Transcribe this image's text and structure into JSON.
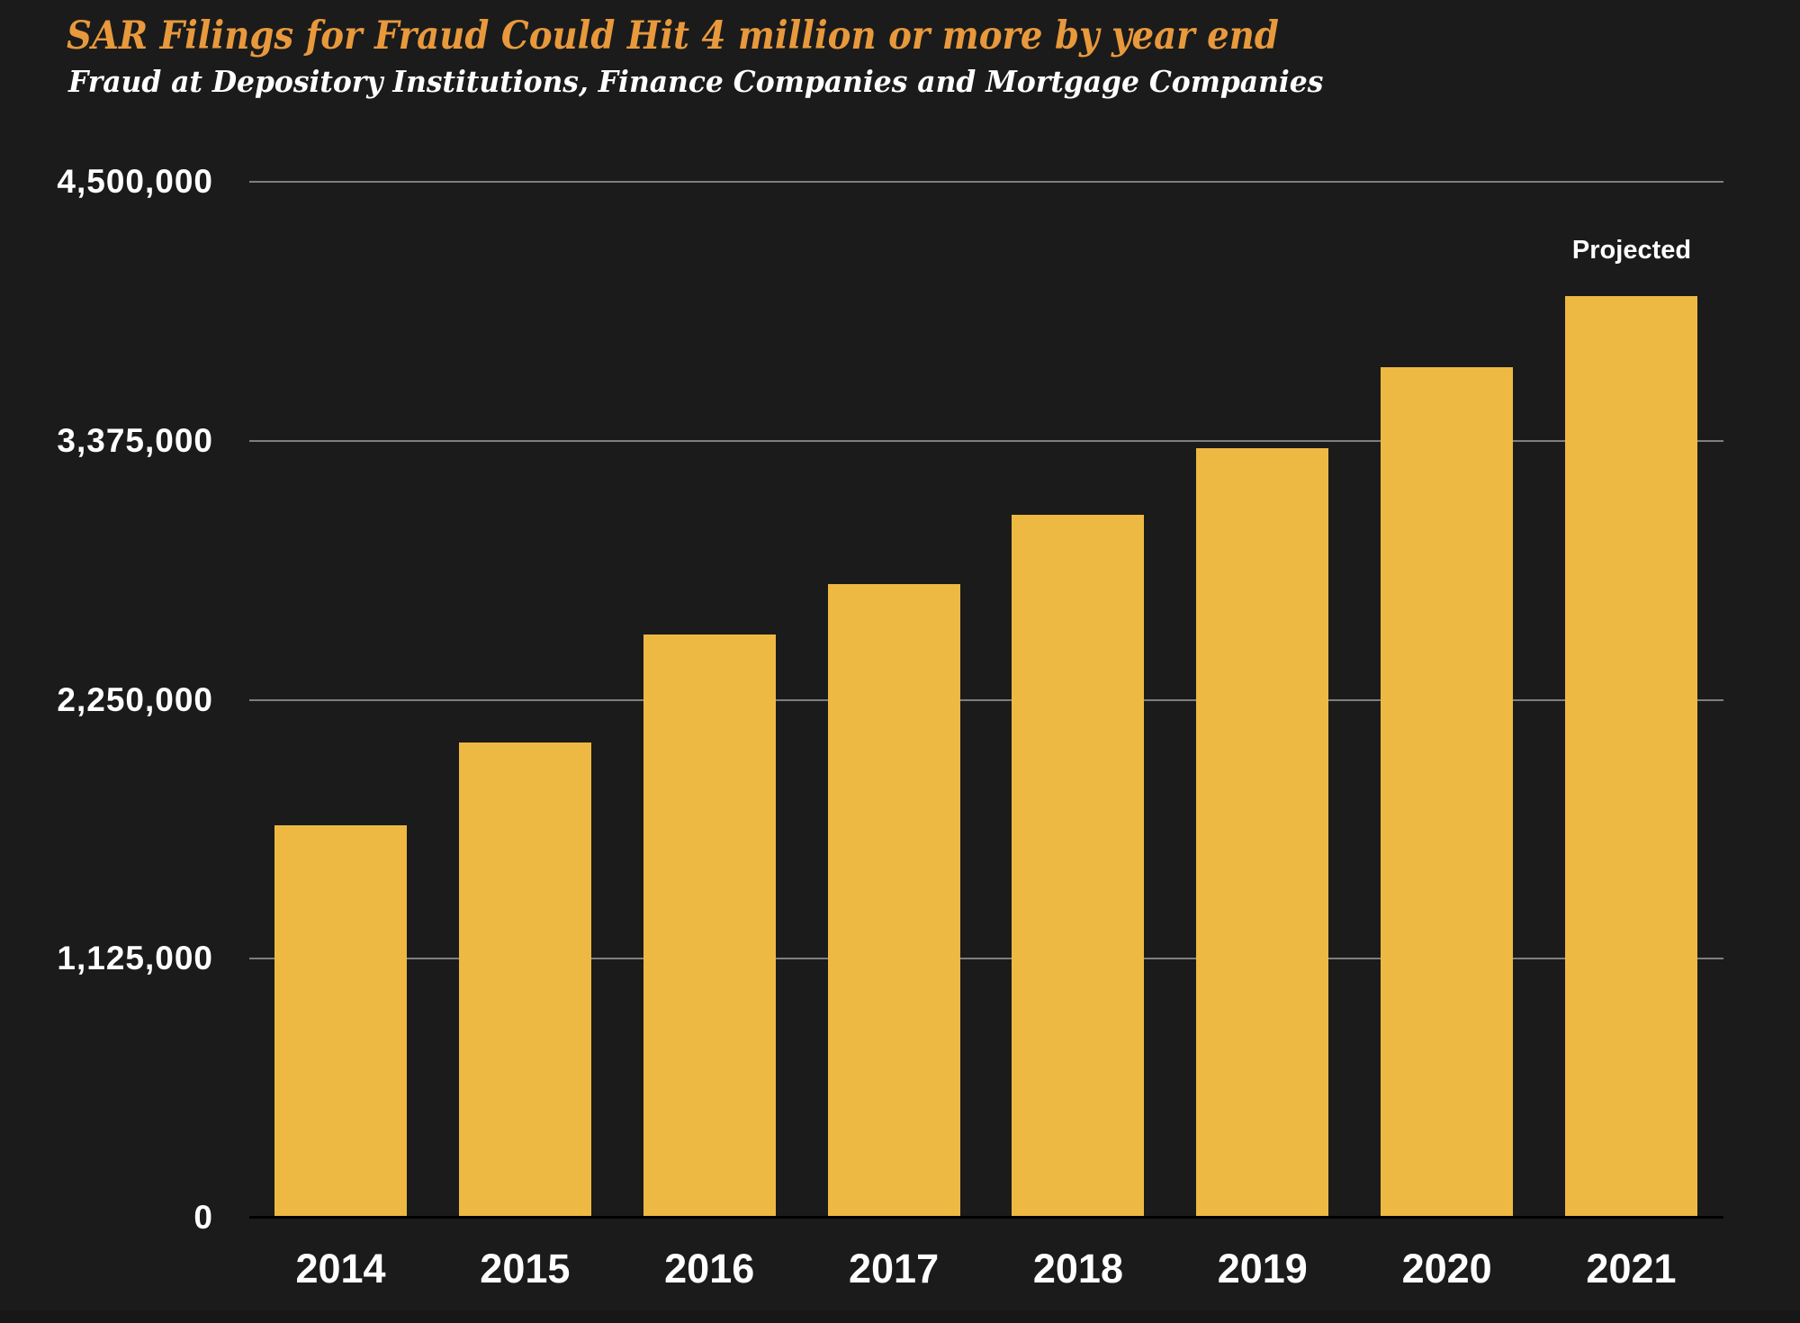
{
  "colors": {
    "background": "#1B1B1B",
    "bar": "#EEB942",
    "title": "#E8993C",
    "text": "#FFFFFF",
    "gridline": "#7E7E7E",
    "baseline": "#000000",
    "footer": "#171717"
  },
  "chart_data": {
    "type": "bar",
    "title": "SAR Filings for Fraud Could Hit 4 million or more by year end",
    "subtitle": "Fraud at Depository Institutions, Finance Companies and Mortgage Companies",
    "categories": [
      "2014",
      "2015",
      "2016",
      "2017",
      "2018",
      "2019",
      "2020",
      "2021"
    ],
    "values": [
      1700000,
      2060000,
      2530000,
      2750000,
      3050000,
      3340000,
      3690000,
      4000000
    ],
    "xlabel": "",
    "ylabel": "",
    "ylim": [
      0,
      4500000
    ],
    "yticks": [
      0,
      1125000,
      2250000,
      3375000,
      4500000
    ],
    "ytick_labels": [
      "0",
      "1,125,000",
      "2,250,000",
      "3,375,000",
      "4,500,000"
    ],
    "grid": true,
    "legend": false,
    "annotations": [
      {
        "text": "Projected",
        "category": "2021",
        "position": "above-bar"
      }
    ]
  }
}
